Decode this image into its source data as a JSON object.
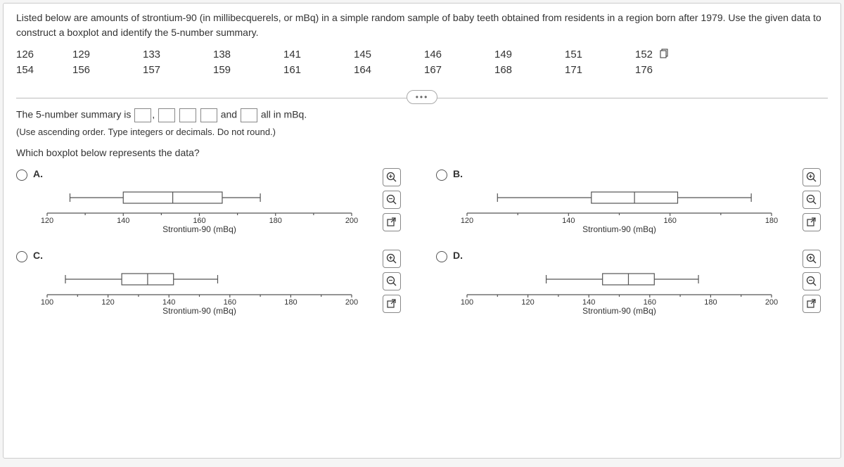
{
  "prompt": "Listed below are amounts of strontium-90 (in millibecquerels, or mBq) in a simple random sample of baby teeth obtained from residents in a region born after 1979. Use the given data to construct a boxplot and identify the 5-number summary.",
  "data_rows": [
    [
      "126",
      "129",
      "133",
      "138",
      "141",
      "145",
      "146",
      "149",
      "151",
      "152"
    ],
    [
      "154",
      "156",
      "157",
      "159",
      "161",
      "164",
      "167",
      "168",
      "171",
      "176"
    ]
  ],
  "summary_prefix": "The 5-number summary is ",
  "summary_mid": " and ",
  "summary_suffix": " all in mBq.",
  "hint": "(Use ascending order. Type integers or decimals. Do not round.)",
  "question": "Which boxplot below represents the data?",
  "axis_label": "Strontium-90 (mBq)",
  "options": {
    "A": {
      "label": "A.",
      "xmin": 120,
      "xmax": 200,
      "ticks": [
        120,
        140,
        160,
        180,
        200
      ],
      "whisker_lo": 126,
      "q1": 140,
      "med": 153,
      "q3": 166,
      "whisker_hi": 176
    },
    "B": {
      "label": "B.",
      "xmin": 120,
      "xmax": 180,
      "ticks": [
        120,
        140,
        160,
        180
      ],
      "whisker_lo": 126,
      "q1": 144.5,
      "med": 153,
      "q3": 161.5,
      "whisker_hi": 176
    },
    "C": {
      "label": "C.",
      "xmin": 100,
      "xmax": 200,
      "ticks": [
        100,
        120,
        140,
        160,
        180,
        200
      ],
      "whisker_lo": 106,
      "q1": 124.5,
      "med": 133,
      "q3": 141.5,
      "whisker_hi": 156
    },
    "D": {
      "label": "D.",
      "xmin": 100,
      "xmax": 200,
      "ticks": [
        100,
        120,
        140,
        160,
        180,
        200
      ],
      "whisker_lo": 126,
      "q1": 144.5,
      "med": 153,
      "q3": 161.5,
      "whisker_hi": 176
    }
  },
  "colors": {
    "line": "#555555",
    "axis": "#333333",
    "border": "#888888"
  }
}
